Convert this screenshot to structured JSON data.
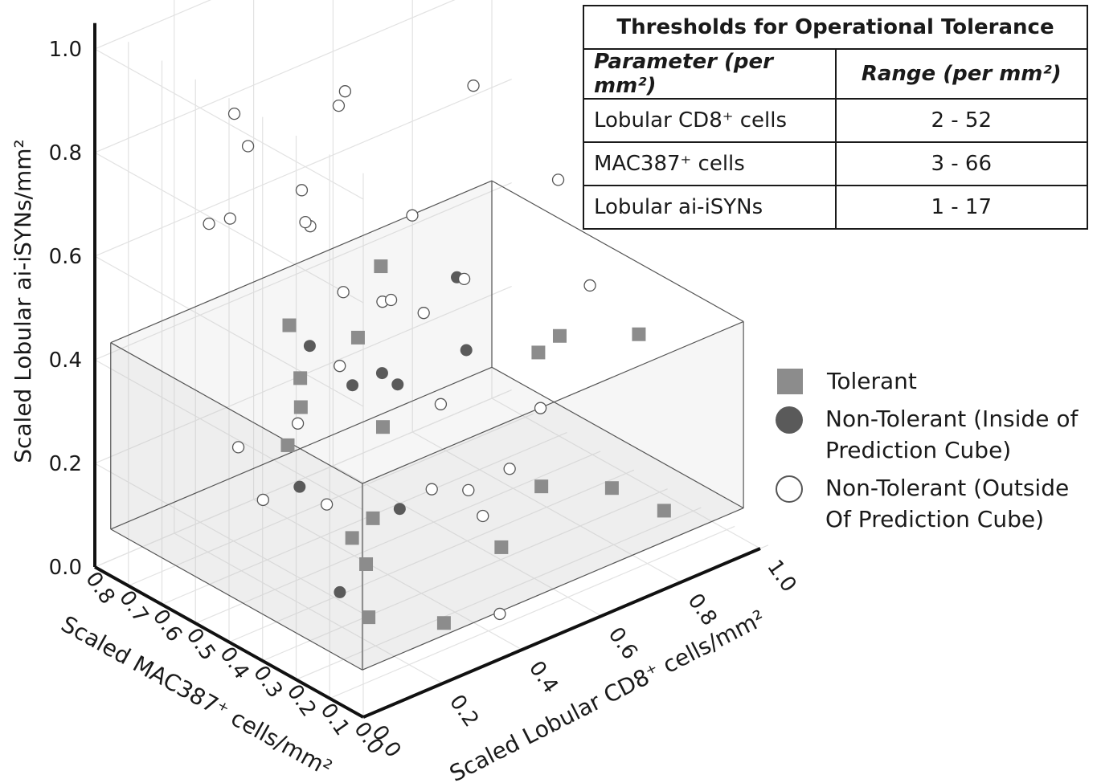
{
  "chart_data": {
    "type": "scatter",
    "projection": "3d",
    "xlabel": "Scaled Lobular CD8⁺ cells/mm²",
    "ylabel": "Scaled MAC387⁺ cells/mm²",
    "zlabel": "Scaled Lobular ai-iSYNs/mm²",
    "x_ticks": [
      "0.0",
      "0.2",
      "0.4",
      "0.6",
      "0.8",
      "1.0"
    ],
    "y_ticks": [
      "0.0",
      "0.1",
      "0.2",
      "0.3",
      "0.4",
      "0.5",
      "0.6",
      "0.7",
      "0.8"
    ],
    "z_ticks": [
      "0.0",
      "0.2",
      "0.4",
      "0.6",
      "0.8",
      "1.0"
    ],
    "xlim": [
      0,
      1
    ],
    "ylim": [
      0,
      0.8
    ],
    "zlim": [
      0,
      1
    ],
    "grid": true,
    "legend_position": "right",
    "prediction_cube": {
      "x": [
        0.04,
        1.0
      ],
      "y": [
        0.05,
        0.8
      ],
      "z": [
        0.06,
        0.42
      ]
    },
    "series": [
      {
        "name": "Tolerant",
        "marker": "square",
        "color": "#8c8c8c",
        "points": [
          [
            0.38,
            0.67,
            0.39
          ],
          [
            0.45,
            0.48,
            0.55
          ],
          [
            0.34,
            0.59,
            0.33
          ],
          [
            0.46,
            0.56,
            0.38
          ],
          [
            0.72,
            0.33,
            0.35
          ],
          [
            0.74,
            0.29,
            0.39
          ],
          [
            0.99,
            0.35,
            0.29
          ],
          [
            0.24,
            0.47,
            0.35
          ],
          [
            0.32,
            0.32,
            0.34
          ],
          [
            0.19,
            0.45,
            0.3
          ],
          [
            0.66,
            0.25,
            0.14
          ],
          [
            0.5,
            0.18,
            0.1
          ],
          [
            0.43,
            0.48,
            0.07
          ],
          [
            0.31,
            0.4,
            0.1
          ],
          [
            0.77,
            0.17,
            0.13
          ],
          [
            0.25,
            0.28,
            0.01
          ],
          [
            0.33,
            0.15,
            0.02
          ],
          [
            0.21,
            0.24,
            0.14
          ],
          [
            0.8,
            0.05,
            0.12
          ]
        ]
      },
      {
        "name": "Non-Tolerant (Inside of Prediction Cube)",
        "marker": "circle-filled",
        "color": "#5a5a5a",
        "points": [
          [
            0.47,
            0.5,
            0.33
          ],
          [
            0.53,
            0.32,
            0.42
          ],
          [
            0.33,
            0.55,
            0.41
          ],
          [
            0.65,
            0.49,
            0.46
          ],
          [
            0.37,
            0.47,
            0.35
          ],
          [
            0.45,
            0.43,
            0.34
          ],
          [
            0.22,
            0.33,
            0.05
          ],
          [
            0.22,
            0.45,
            0.21
          ],
          [
            0.32,
            0.27,
            0.2
          ]
        ]
      },
      {
        "name": "Non-Tolerant (Outside Of Prediction Cube)",
        "marker": "circle-open",
        "color": "#ffffff",
        "points": [
          [
            0.25,
            0.35,
            1.0
          ],
          [
            0.14,
            0.55,
            0.92
          ],
          [
            0.09,
            0.45,
            0.91
          ],
          [
            0.31,
            0.44,
            0.92
          ],
          [
            0.2,
            0.42,
            0.8
          ],
          [
            0.36,
            0.28,
            0.75
          ],
          [
            0.12,
            0.3,
            0.8
          ],
          [
            0.15,
            0.35,
            0.78
          ],
          [
            0.7,
            0.5,
            0.81
          ],
          [
            0.66,
            0.2,
            0.75
          ],
          [
            0.9,
            0.25,
            0.63
          ],
          [
            0.22,
            0.72,
            0.62
          ],
          [
            0.29,
            0.74,
            0.6
          ],
          [
            0.33,
            0.45,
            0.55
          ],
          [
            0.55,
            0.35,
            0.54
          ],
          [
            0.74,
            0.2,
            0.52
          ],
          [
            0.64,
            0.7,
            0.34
          ],
          [
            0.3,
            0.55,
            0.27
          ],
          [
            0.7,
            0.3,
            0.26
          ],
          [
            0.66,
            0.55,
            0.19
          ],
          [
            0.28,
            0.44,
            0.16
          ],
          [
            0.6,
            0.78,
            0.2
          ],
          [
            0.26,
            0.68,
            0.19
          ],
          [
            0.28,
            0.63,
            0.1
          ],
          [
            0.58,
            0.33,
            0.08
          ],
          [
            0.4,
            0.16,
            0.25
          ],
          [
            0.58,
            0.25,
            0.2
          ],
          [
            0.35,
            0.21,
            0.25
          ],
          [
            0.71,
            0.66,
            0.31
          ],
          [
            0.67,
            0.71,
            0.33
          ],
          [
            0.42,
            0.09,
            0.03
          ]
        ]
      }
    ]
  },
  "table": {
    "title": "Thresholds for Operational Tolerance",
    "headers": [
      "Parameter (per mm²)",
      "Range (per mm²)"
    ],
    "rows": [
      [
        "Lobular CD8⁺ cells",
        "2 - 52"
      ],
      [
        "MAC387⁺ cells",
        "3 - 66"
      ],
      [
        "Lobular ai-iSYNs",
        "1 - 17"
      ]
    ]
  },
  "legend": {
    "items": [
      {
        "label": "Tolerant"
      },
      {
        "label": "Non-Tolerant (Inside of Prediction Cube)"
      },
      {
        "label": "Non-Tolerant (Outside Of Prediction Cube)"
      }
    ]
  }
}
